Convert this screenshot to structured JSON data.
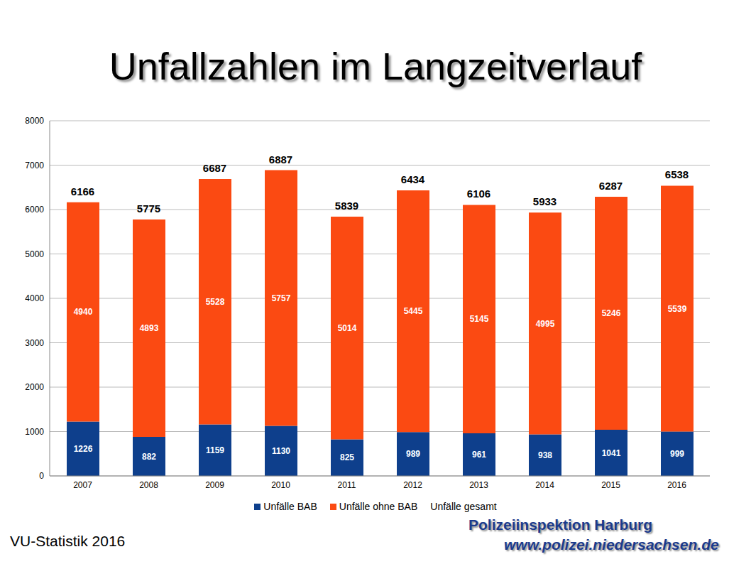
{
  "chart_data": {
    "type": "bar",
    "title": "Unfallzahlen im Langzeitverlauf",
    "categories": [
      "2007",
      "2008",
      "2009",
      "2010",
      "2011",
      "2012",
      "2013",
      "2014",
      "2015",
      "2016"
    ],
    "series": [
      {
        "name": "Unfälle BAB",
        "color": "#0e3f8c",
        "values": [
          1226,
          882,
          1159,
          1130,
          825,
          989,
          961,
          938,
          1041,
          999
        ]
      },
      {
        "name": "Unfälle ohne BAB",
        "color": "#fb4a12",
        "values": [
          4940,
          4893,
          5528,
          5757,
          5014,
          5445,
          5145,
          4995,
          5246,
          5539
        ]
      },
      {
        "name": "Unfälle gesamt",
        "type": "line",
        "line_style": "none",
        "values": [
          6166,
          5775,
          6687,
          6887,
          5839,
          6434,
          6106,
          5933,
          6287,
          6538
        ]
      }
    ],
    "ylim": [
      0,
      8000
    ],
    "yticks": [
      0,
      1000,
      2000,
      3000,
      4000,
      5000,
      6000,
      7000,
      8000
    ],
    "grid": true,
    "stacked": true,
    "data_labels": true,
    "annotations": [
      "VU-Statistik 2016",
      "Polizeiinspektion Harburg",
      "www.polizei.niedersachsen.de"
    ]
  }
}
